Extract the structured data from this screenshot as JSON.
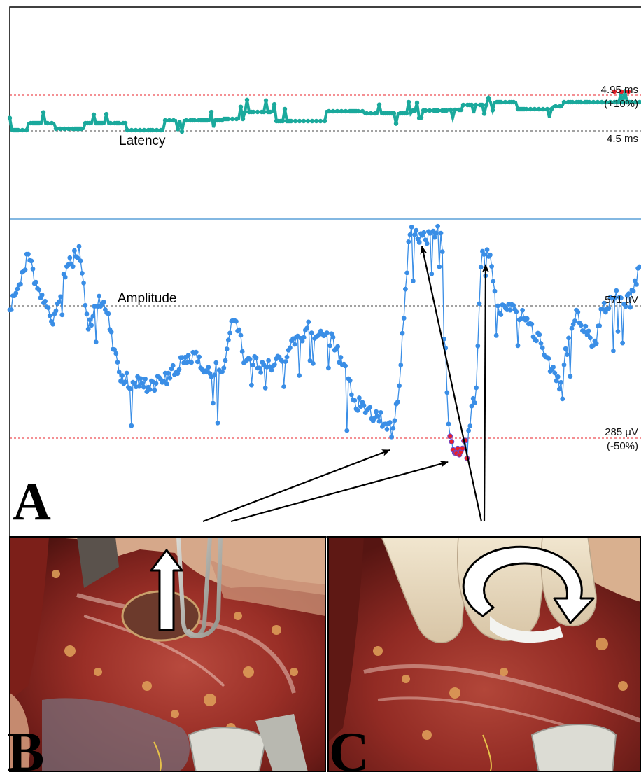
{
  "panels": [
    {
      "letter": "A",
      "kind": "monitoring-plot"
    },
    {
      "letter": "B",
      "kind": "surgical-photo",
      "annotation": "arrow-up-icon"
    },
    {
      "letter": "C",
      "kind": "surgical-photo",
      "annotation": "rotation-arrow-icon"
    }
  ],
  "latency": {
    "label": "Latency",
    "baseline_label": "4.5 ms",
    "threshold_label": "4.95 ms",
    "threshold_pct": "(+10%)",
    "baseline_ms": 4.5,
    "threshold_ms": 4.95,
    "color": "#1aa99c",
    "alarm_color": "#e8202a"
  },
  "amplitude": {
    "label": "Amplitude",
    "baseline_label": "571 µV",
    "threshold_label": "285 µV",
    "threshold_pct": "(-50%)",
    "baseline_uv": 571,
    "threshold_uv": 285,
    "color": "#3a8ee6",
    "alarm_color": "#e8202a"
  },
  "colors": {
    "baseline_line": "#444444",
    "threshold_line": "#e8202a",
    "divider_line": "#5aa0d8",
    "photo_tissue": "#8e2a22"
  }
}
